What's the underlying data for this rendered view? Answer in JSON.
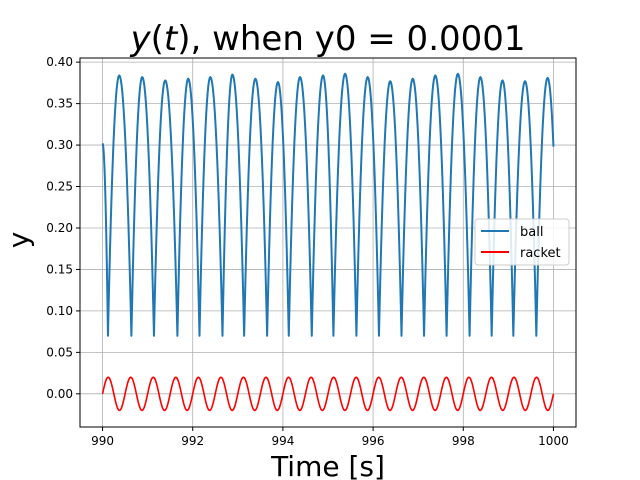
{
  "chart_data": {
    "type": "line",
    "title": {
      "var": "y",
      "open": "(",
      "arg": "t",
      "close": ")",
      "rest": ", when y0 = 0.0001"
    },
    "xlabel": "Time [s]",
    "ylabel": "y",
    "xlim": [
      989.5,
      1000.5
    ],
    "ylim": [
      -0.04,
      0.405
    ],
    "xticks": [
      990,
      992,
      994,
      996,
      998,
      1000
    ],
    "xtick_labels": [
      "990",
      "992",
      "994",
      "996",
      "998",
      "1000"
    ],
    "yticks": [
      0.0,
      0.05,
      0.1,
      0.15,
      0.2,
      0.25,
      0.3,
      0.35,
      0.4
    ],
    "ytick_labels": [
      "0.00",
      "0.05",
      "0.10",
      "0.15",
      "0.20",
      "0.25",
      "0.30",
      "0.35",
      "0.40"
    ],
    "grid": true,
    "legend": {
      "placement": "center-right"
    },
    "series": [
      {
        "name": "ball",
        "color": "#1f77b4",
        "start": {
          "t": 990.0,
          "y": 0.302
        },
        "end": {
          "t": 1000.0,
          "y": 0.298
        },
        "impacts": [
          {
            "t": 990.12,
            "y": 0.07
          },
          {
            "t": 990.64,
            "y": 0.07
          },
          {
            "t": 991.14,
            "y": 0.07
          },
          {
            "t": 991.66,
            "y": 0.07
          },
          {
            "t": 992.15,
            "y": 0.07
          },
          {
            "t": 992.66,
            "y": 0.07
          },
          {
            "t": 993.14,
            "y": 0.07
          },
          {
            "t": 993.65,
            "y": 0.07
          },
          {
            "t": 994.13,
            "y": 0.07
          },
          {
            "t": 994.64,
            "y": 0.07
          },
          {
            "t": 995.12,
            "y": 0.07
          },
          {
            "t": 995.63,
            "y": 0.07
          },
          {
            "t": 996.13,
            "y": 0.07
          },
          {
            "t": 996.63,
            "y": 0.07
          },
          {
            "t": 997.13,
            "y": 0.07
          },
          {
            "t": 997.63,
            "y": 0.07
          },
          {
            "t": 998.14,
            "y": 0.07
          },
          {
            "t": 998.63,
            "y": 0.07
          },
          {
            "t": 999.11,
            "y": 0.07
          },
          {
            "t": 999.62,
            "y": 0.07
          }
        ],
        "peaks": [
          {
            "t": 990.37,
            "y": 0.384
          },
          {
            "t": 990.88,
            "y": 0.382
          },
          {
            "t": 991.39,
            "y": 0.378
          },
          {
            "t": 991.9,
            "y": 0.38
          },
          {
            "t": 992.39,
            "y": 0.382
          },
          {
            "t": 992.88,
            "y": 0.385
          },
          {
            "t": 993.39,
            "y": 0.38
          },
          {
            "t": 993.89,
            "y": 0.376
          },
          {
            "t": 994.38,
            "y": 0.382
          },
          {
            "t": 994.89,
            "y": 0.384
          },
          {
            "t": 995.38,
            "y": 0.386
          },
          {
            "t": 995.88,
            "y": 0.382
          },
          {
            "t": 996.38,
            "y": 0.377
          },
          {
            "t": 996.88,
            "y": 0.38
          },
          {
            "t": 997.38,
            "y": 0.384
          },
          {
            "t": 997.88,
            "y": 0.386
          },
          {
            "t": 998.38,
            "y": 0.382
          },
          {
            "t": 998.87,
            "y": 0.378
          },
          {
            "t": 999.37,
            "y": 0.377
          },
          {
            "t": 999.87,
            "y": 0.381
          }
        ]
      },
      {
        "name": "racket",
        "color": "#ff0000",
        "amplitude": 0.02,
        "cycles": 20,
        "t_start": 990,
        "t_end": 1000,
        "offset": 0.0
      }
    ]
  }
}
